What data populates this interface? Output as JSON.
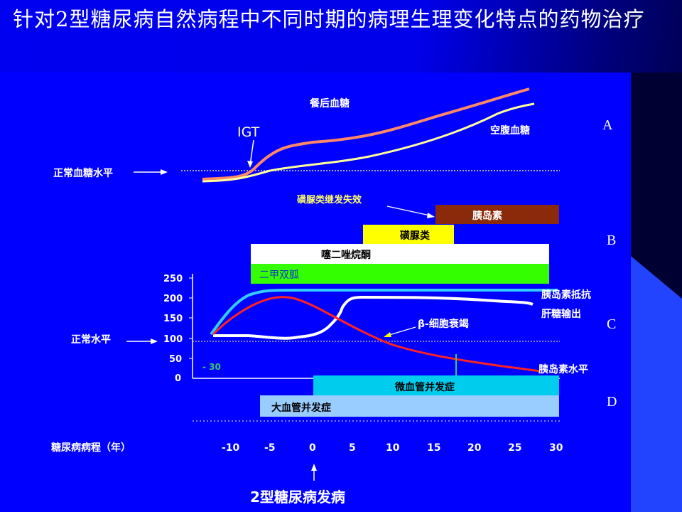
{
  "title": "针对2型糖尿病自然病程中不同时期的病理生理变化特点的药物治疗",
  "section_a": {
    "letter": "A",
    "postprandial_label": "餐后血糖",
    "fasting_label": "空腹血糖",
    "igt_label": "IGT",
    "normal_glucose_label": "正常血糖水平",
    "arrow": "→"
  },
  "section_b": {
    "letter": "B",
    "failure_label": "磺脲类继发失效",
    "bars": [
      {
        "label": "胰岛素",
        "color": "#8b2a0a"
      },
      {
        "label": "磺脲类",
        "color": "#ffff00"
      },
      {
        "label": "噻二唑烷酮",
        "color": "#ffffff"
      },
      {
        "label": "二甲双胍",
        "color": "#33ff00"
      }
    ]
  },
  "section_c": {
    "letter": "C",
    "y_ticks": [
      "250",
      "200",
      "150",
      "100",
      "50",
      "0"
    ],
    "minus30_label": "- 30",
    "normal_level_label": "正常水平",
    "resistance_label": "胰岛素抵抗",
    "hepatic_label": "肝糖输出",
    "beta_label": "β-细胞衰竭",
    "insulin_level_label": "胰岛素水平"
  },
  "section_d": {
    "letter": "D",
    "micro_label": "微血管并发症",
    "macro_label": "大血管并发症",
    "micro_color": "#00ccee",
    "macro_color": "#99ccff"
  },
  "x_axis": {
    "label": "糖尿病病程（年）",
    "ticks": [
      "-10",
      "-5",
      "0",
      "5",
      "10",
      "15",
      "20",
      "25",
      "30"
    ]
  },
  "onset_label": "2型糖尿病发病",
  "colors": {
    "postprandial": "#ff8866",
    "fasting": "#ffff99",
    "resistance": "#33ccff",
    "hepatic": "#ffffff",
    "insulin": "#ff2222",
    "beta_marker": "#33cc66"
  }
}
